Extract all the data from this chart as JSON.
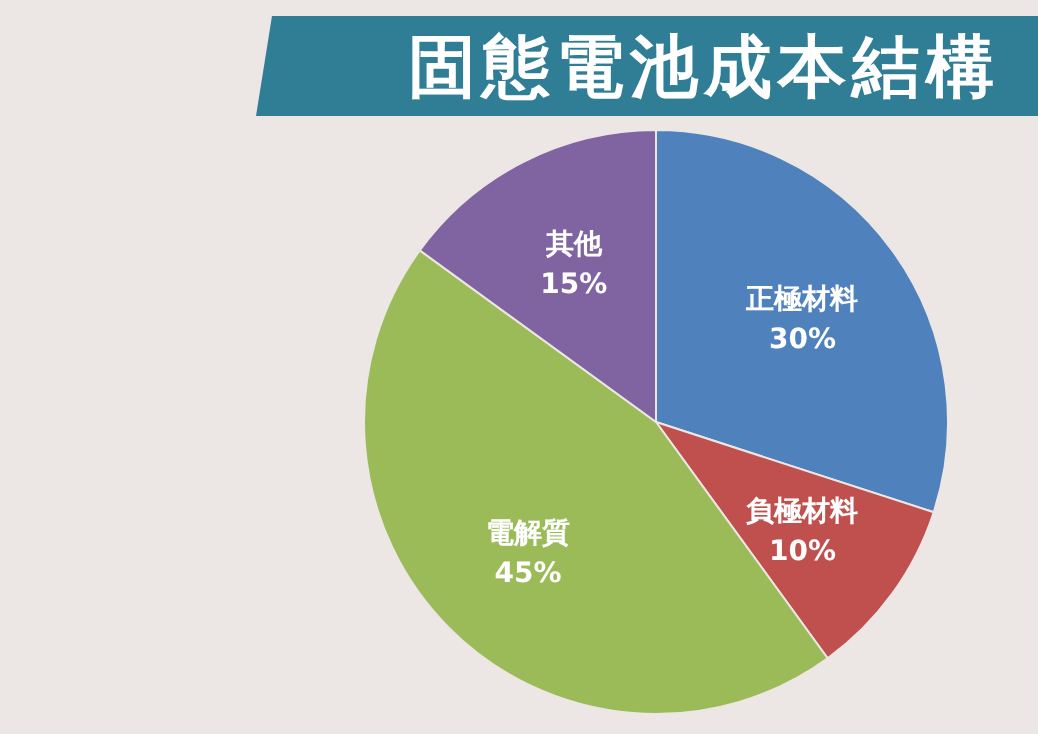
{
  "chart_data": {
    "type": "pie",
    "title": "固態電池成本結構",
    "categories": [
      "正極材料",
      "負極材料",
      "電解質",
      "其他"
    ],
    "values": [
      30,
      10,
      45,
      15
    ],
    "value_labels": [
      "30%",
      "10%",
      "45%",
      "15%"
    ],
    "colors": [
      "#4f81bd",
      "#c0504d",
      "#9bbb59",
      "#8064a2"
    ]
  }
}
